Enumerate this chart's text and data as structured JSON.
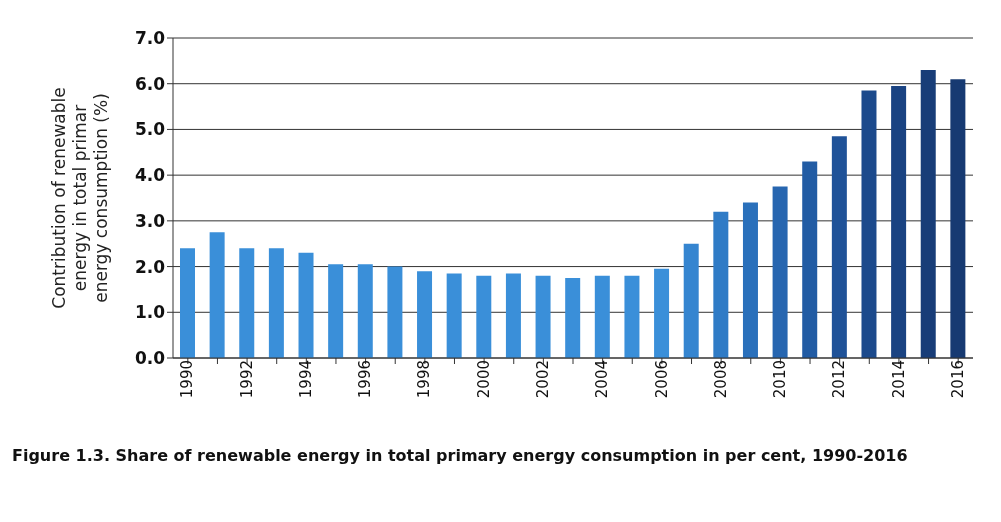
{
  "chart_data": {
    "type": "bar",
    "ylabel": "Contribution of renewable energy in total primar energy consumption (%)",
    "annotations": [
      "Figure 1.3. Share of renewable energy in total primary energy consumption in per cent, 1990-2016"
    ],
    "categories": [
      "1990",
      null,
      "1992",
      null,
      "1994",
      null,
      "1996",
      null,
      "1998",
      null,
      "2000",
      null,
      "2002",
      null,
      "2004",
      null,
      "2006",
      null,
      "2008",
      null,
      "2010",
      null,
      "2012",
      null,
      "2014",
      null,
      "2016"
    ],
    "values": [
      2.4,
      2.75,
      2.4,
      2.4,
      2.3,
      2.05,
      2.05,
      2.0,
      1.9,
      1.85,
      1.8,
      1.85,
      1.8,
      1.75,
      1.8,
      1.8,
      1.95,
      2.5,
      3.2,
      3.4,
      3.75,
      4.3,
      4.85,
      5.85,
      5.95,
      6.3,
      6.1
    ],
    "colors": [
      "#3a8fd9",
      "#3a8fd9",
      "#3a8fd9",
      "#3a8fd9",
      "#3a8fd9",
      "#3a8fd9",
      "#3a8fd9",
      "#3a8fd9",
      "#3a8fd9",
      "#3a8fd9",
      "#3a8fd9",
      "#3a8fd9",
      "#3a8fd9",
      "#3a8fd9",
      "#3a8fd9",
      "#3a8fd9",
      "#3a8fd9",
      "#3585d0",
      "#2f7bc6",
      "#2a70bb",
      "#2766b0",
      "#225ca4",
      "#1f5298",
      "#1c4a8c",
      "#1a4382",
      "#183d78",
      "#173a72"
    ],
    "ylim": [
      0,
      7
    ],
    "yticks": [
      {
        "value": 0,
        "label": "0.0"
      },
      {
        "value": 1,
        "label": "1.0"
      },
      {
        "value": 2,
        "label": "2.0"
      },
      {
        "value": 3,
        "label": "3.0"
      },
      {
        "value": 4,
        "label": "4.0"
      },
      {
        "value": 5,
        "label": "5.0"
      },
      {
        "value": 6,
        "label": "6.0"
      },
      {
        "value": 7,
        "label": "7.0"
      }
    ],
    "grid": "y"
  }
}
